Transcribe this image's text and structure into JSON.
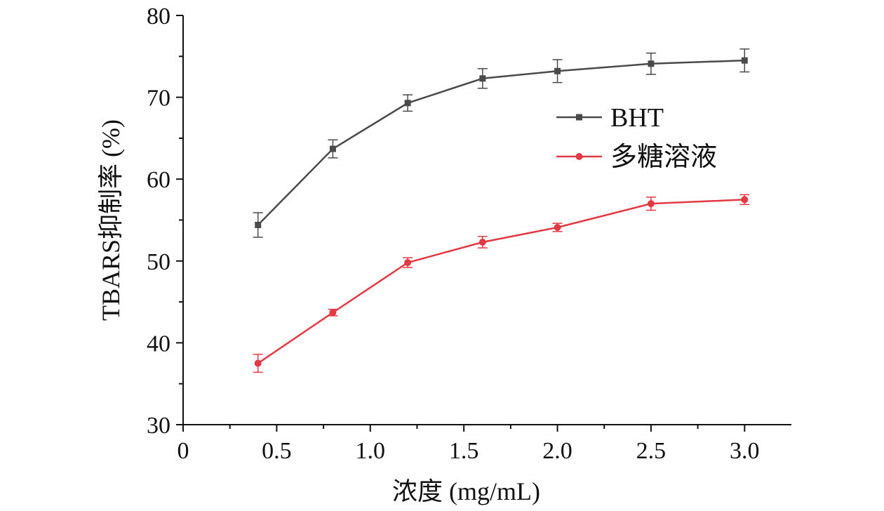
{
  "chart_data": {
    "type": "line",
    "title": "",
    "xlabel": "浓度 (mg/mL)",
    "ylabel": "TBARS抑制率 (%)",
    "xlim": [
      0,
      3.25
    ],
    "ylim": [
      30,
      80
    ],
    "x_ticks": [
      0,
      0.5,
      1.0,
      1.5,
      2.0,
      2.5,
      3.0
    ],
    "x_tick_labels": [
      "0",
      "0.5",
      "1.0",
      "1.5",
      "2.0",
      "2.5",
      "3.0"
    ],
    "y_ticks": [
      30,
      40,
      50,
      60,
      70,
      80
    ],
    "y_tick_labels": [
      "30",
      "40",
      "50",
      "60",
      "70",
      "80"
    ],
    "x": [
      0.4,
      0.8,
      1.2,
      1.6,
      2.0,
      2.5,
      3.0
    ],
    "series": [
      {
        "name": "BHT",
        "color": "#4a4a4a",
        "marker": "square",
        "values": [
          54.4,
          63.7,
          69.3,
          72.3,
          73.2,
          74.1,
          74.5
        ],
        "errors": [
          1.5,
          1.1,
          1.0,
          1.2,
          1.4,
          1.3,
          1.4
        ]
      },
      {
        "name": "多糖溶液",
        "color": "#e23a44",
        "marker": "circle",
        "values": [
          37.5,
          43.7,
          49.8,
          52.3,
          54.1,
          57.0,
          57.5
        ],
        "errors": [
          1.1,
          0.4,
          0.6,
          0.7,
          0.5,
          0.8,
          0.6
        ]
      }
    ],
    "grid": false,
    "legend_position": "right-middle"
  }
}
